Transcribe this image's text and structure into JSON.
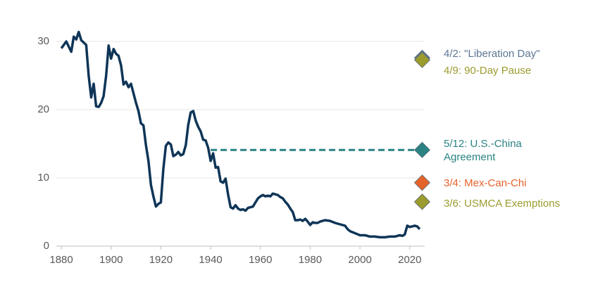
{
  "chart_data": {
    "type": "line",
    "x": [
      1880,
      1882,
      1884,
      1885,
      1886,
      1887,
      1888,
      1890,
      1891,
      1892,
      1893,
      1894,
      1895,
      1896,
      1897,
      1898,
      1899,
      1900,
      1901,
      1902,
      1903,
      1904,
      1905,
      1906,
      1907,
      1908,
      1910,
      1911,
      1912,
      1913,
      1914,
      1915,
      1916,
      1917,
      1918,
      1919,
      1920,
      1921,
      1922,
      1923,
      1924,
      1925,
      1926,
      1927,
      1928,
      1929,
      1930,
      1931,
      1932,
      1933,
      1934,
      1935,
      1936,
      1937,
      1938,
      1939,
      1940,
      1941,
      1942,
      1943,
      1944,
      1945,
      1946,
      1947,
      1948,
      1949,
      1950,
      1951,
      1952,
      1953,
      1954,
      1955,
      1956,
      1957,
      1958,
      1959,
      1960,
      1961,
      1962,
      1963,
      1964,
      1965,
      1966,
      1967,
      1968,
      1969,
      1970,
      1971,
      1972,
      1973,
      1974,
      1975,
      1976,
      1977,
      1978,
      1979,
      1980,
      1981,
      1982,
      1983,
      1984,
      1986,
      1988,
      1990,
      1992,
      1994,
      1995,
      1996,
      1998,
      2000,
      2002,
      2004,
      2006,
      2008,
      2010,
      2012,
      2014,
      2016,
      2017,
      2018,
      2019,
      2020,
      2021,
      2022,
      2023,
      2024
    ],
    "series": [
      {
        "color": "#0f3557",
        "values": [
          29,
          30,
          28.5,
          30.7,
          30.3,
          31.4,
          30.2,
          29.5,
          25,
          21.8,
          23.8,
          20.5,
          20.4,
          21,
          22,
          25,
          29.4,
          27.5,
          28.9,
          28.2,
          27.9,
          26.5,
          23.7,
          24.1,
          23.3,
          23.8,
          21,
          19.8,
          18,
          17.7,
          14.8,
          12.5,
          9,
          7.3,
          5.8,
          6.2,
          6.4,
          11.4,
          14.7,
          15.2,
          14.9,
          13.2,
          13.4,
          13.8,
          13.3,
          13.5,
          14.8,
          17.8,
          19.6,
          19.8,
          18.4,
          17.5,
          16.8,
          15.6,
          15.5,
          14.4,
          12.5,
          13.6,
          11.5,
          11.6,
          9.5,
          9.3,
          9.9,
          7.6,
          5.7,
          5.5,
          6.0,
          5.5,
          5.3,
          5.4,
          5.2,
          5.6,
          5.7,
          5.8,
          6.4,
          7.0,
          7.3,
          7.5,
          7.3,
          7.4,
          7.3,
          7.7,
          7.6,
          7.5,
          7.2,
          7.0,
          6.5,
          6.1,
          5.5,
          5.0,
          3.8,
          3.8,
          3.9,
          3.7,
          4.0,
          3.6,
          3.1,
          3.5,
          3.4,
          3.4,
          3.6,
          3.8,
          3.7,
          3.4,
          3.2,
          3.0,
          2.5,
          2.2,
          1.9,
          1.6,
          1.6,
          1.4,
          1.4,
          1.3,
          1.3,
          1.4,
          1.4,
          1.6,
          1.5,
          1.7,
          3.0,
          2.8,
          2.9,
          3.0,
          2.9,
          2.5
        ]
      }
    ],
    "xlim": [
      1878,
      2026
    ],
    "ylim": [
      0,
      32
    ],
    "xticks": [
      1880,
      1900,
      1920,
      1940,
      1960,
      1980,
      2000,
      2020
    ],
    "yticks": [
      0,
      10,
      20,
      30
    ],
    "grid": true,
    "markers": [
      {
        "label": "4/2: \"Liberation Day\"",
        "x": 2025,
        "value": 27.6,
        "color": "#5b7693"
      },
      {
        "label": "4/9: 90-Day Pause",
        "x": 2025,
        "value": 27.3,
        "color": "#9b9b2e"
      },
      {
        "label": [
          "5/12: U.S.-China",
          "Agreement"
        ],
        "x": 2025,
        "value": 14.1,
        "color": "#2a8282"
      },
      {
        "label": "3/4: Mex-Can-Chi",
        "x": 2025,
        "value": 9.3,
        "color": "#e5622a"
      },
      {
        "label": "3/6: USMCA Exemptions",
        "x": 2025,
        "value": 6.5,
        "color": "#9b9b2e"
      }
    ],
    "reference_line": {
      "x_start": 1940,
      "marker": 2
    }
  }
}
